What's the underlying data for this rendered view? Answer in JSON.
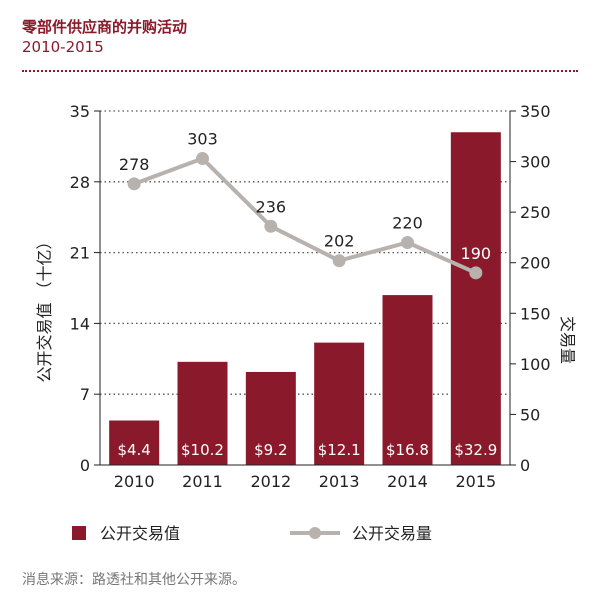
{
  "header": {
    "title": "零部件供应商的并购活动",
    "subtitle": "2010-2015"
  },
  "footer": {
    "source": "消息来源：路透社和其他公开来源。"
  },
  "colors": {
    "bar": "#8a1a2b",
    "line": "#b7b2ad",
    "accent": "#8a1a2b"
  },
  "chart_data": {
    "type": "bar",
    "categories": [
      "2010",
      "2011",
      "2012",
      "2013",
      "2014",
      "2015"
    ],
    "series": [
      {
        "name": "公开交易值",
        "type": "bar",
        "axis": "left",
        "values": [
          4.4,
          10.2,
          9.2,
          12.1,
          16.8,
          32.9
        ],
        "labels": [
          "$4.4",
          "$10.2",
          "$9.2",
          "$12.1",
          "$16.8",
          "$32.9"
        ]
      },
      {
        "name": "公开交易量",
        "type": "line",
        "axis": "right",
        "values": [
          278,
          303,
          236,
          202,
          220,
          190
        ],
        "labels": [
          "278",
          "303",
          "236",
          "202",
          "220",
          "190"
        ]
      }
    ],
    "ylabel_left": "公开交易值 （十亿）",
    "ylabel_right": "交易量",
    "ylim_left": [
      0,
      35
    ],
    "ylim_right": [
      0,
      350
    ],
    "yticks_left": [
      "0",
      "7",
      "14",
      "21",
      "28",
      "35"
    ],
    "yticks_right": [
      "0",
      "50",
      "100",
      "150",
      "200",
      "250",
      "300",
      "350"
    ],
    "grid": true,
    "legend_position": "bottom"
  }
}
